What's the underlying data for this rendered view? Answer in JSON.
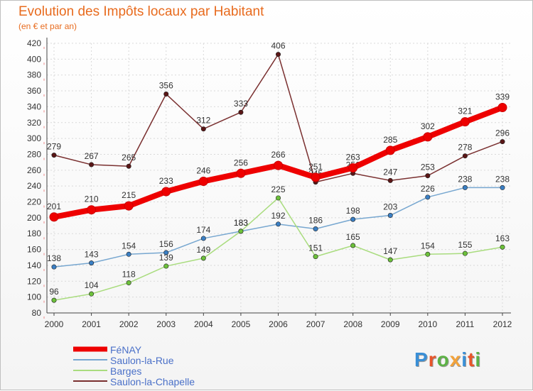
{
  "title": "Evolution des Impôts locaux par Habitant",
  "subtitle": "(en € et par an)",
  "logo": {
    "text": "Proxiti",
    "colors": [
      "#3a8fd6",
      "#e8552a",
      "#5db246",
      "#f2a23a",
      "#3a8fd6",
      "#e8552a",
      "#5db246"
    ]
  },
  "chart_data": {
    "type": "line",
    "title": "Evolution des Impôts locaux par Habitant",
    "subtitle": "(en € et par an)",
    "xlabel": "",
    "ylabel": "",
    "x": [
      "2000",
      "2001",
      "2002",
      "2003",
      "2004",
      "2005",
      "2006",
      "2007",
      "2008",
      "2009",
      "2010",
      "2011",
      "2012"
    ],
    "ylim": [
      80,
      420
    ],
    "yticks": [
      80,
      100,
      120,
      140,
      160,
      180,
      200,
      220,
      240,
      260,
      280,
      300,
      320,
      340,
      360,
      380,
      400,
      420
    ],
    "ytick_labels": [
      "80",
      "100",
      "120",
      "140",
      "160",
      "180",
      "200",
      "220",
      "240",
      "260",
      "280",
      "300",
      "320",
      "340",
      "360",
      "380",
      "400",
      "420"
    ],
    "grid": true,
    "legend_position": "bottom-left",
    "series": [
      {
        "name": "FéNAY",
        "color": "#ee0000",
        "marker": "#ee0000",
        "emphasis": true,
        "values": [
          201,
          210,
          215,
          233,
          246,
          256,
          266,
          251,
          263,
          285,
          302,
          321,
          339
        ],
        "labels": [
          "201",
          "210",
          "215",
          "233",
          "246",
          "256",
          "266",
          "251",
          "263",
          "285",
          "302",
          "321",
          "339"
        ]
      },
      {
        "name": "Saulon-la-Rue",
        "color": "#77a7d0",
        "marker": "#3a7fc4",
        "emphasis": false,
        "values": [
          138,
          143,
          154,
          156,
          174,
          183,
          192,
          186,
          198,
          203,
          226,
          238,
          238
        ],
        "labels": [
          "138",
          "143",
          "154",
          "156",
          "174",
          "183",
          "192",
          "186",
          "198",
          "203",
          "226",
          "238",
          "238"
        ]
      },
      {
        "name": "Barges",
        "color": "#a9dc7e",
        "marker": "#6cc13a",
        "emphasis": false,
        "values": [
          96,
          104,
          118,
          139,
          149,
          183,
          225,
          151,
          165,
          147,
          154,
          155,
          163
        ],
        "labels": [
          "96",
          "104",
          "118",
          "139",
          "149",
          "183",
          "225",
          "151",
          "165",
          "147",
          "154",
          "155",
          "163"
        ]
      },
      {
        "name": "Saulon-la-Chapelle",
        "color": "#7a3030",
        "marker": "#5a1616",
        "emphasis": false,
        "values": [
          279,
          267,
          265,
          356,
          312,
          333,
          406,
          245,
          256,
          247,
          253,
          278,
          296
        ],
        "labels": [
          "279",
          "267",
          "265",
          "356",
          "312",
          "333",
          "406",
          "245",
          "256",
          "247",
          "253",
          "278",
          "296"
        ]
      }
    ]
  }
}
